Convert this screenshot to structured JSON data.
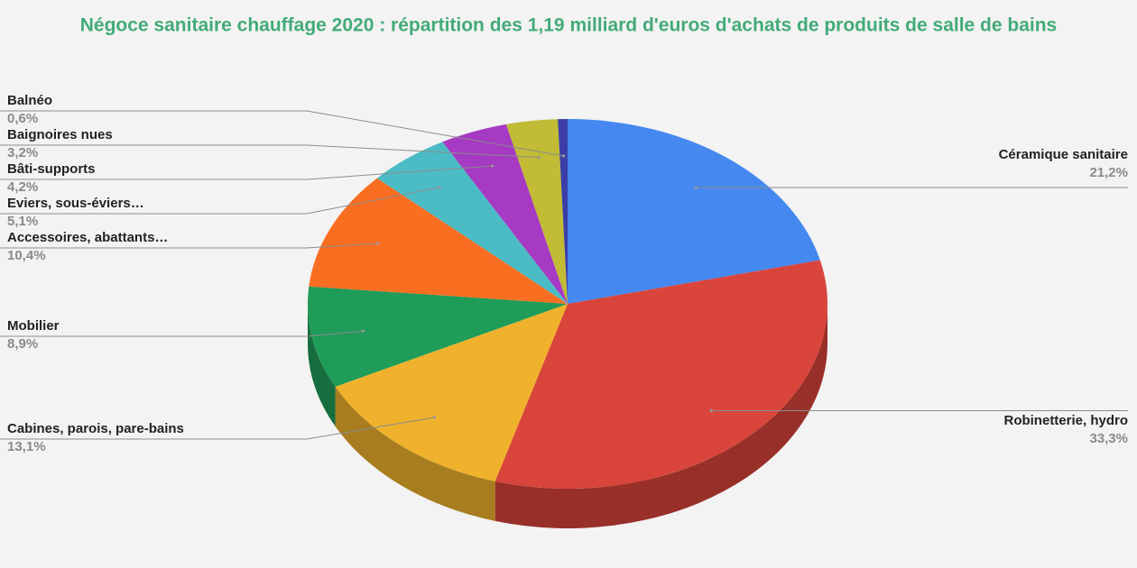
{
  "chart_data": {
    "type": "pie",
    "title": "Négoce sanitaire chauffage 2020 : répartition des 1,19 milliard d'euros d'achats de produits de salle de bains",
    "categories": [
      "Céramique sanitaire",
      "Robinetterie, hydro",
      "Cabines, parois, pare-bains",
      "Mobilier",
      "Accessoires, abattants…",
      "Eviers, sous-éviers…",
      "Bâti-supports",
      "Baignoires nues",
      "Balnéo"
    ],
    "values": [
      21.2,
      33.3,
      13.1,
      8.9,
      10.4,
      5.1,
      4.2,
      3.2,
      0.6
    ],
    "value_labels": [
      "21,2%",
      "33,3%",
      "13,1%",
      "8,9%",
      "10,4%",
      "5,1%",
      "4,2%",
      "3,2%",
      "0,6%"
    ],
    "colors": [
      "#4588f0",
      "#d9453b",
      "#f0b22c",
      "#1f9c58",
      "#fa6e22",
      "#4bbcc5",
      "#a63ac3",
      "#c1bb35",
      "#3a3ea6"
    ]
  }
}
